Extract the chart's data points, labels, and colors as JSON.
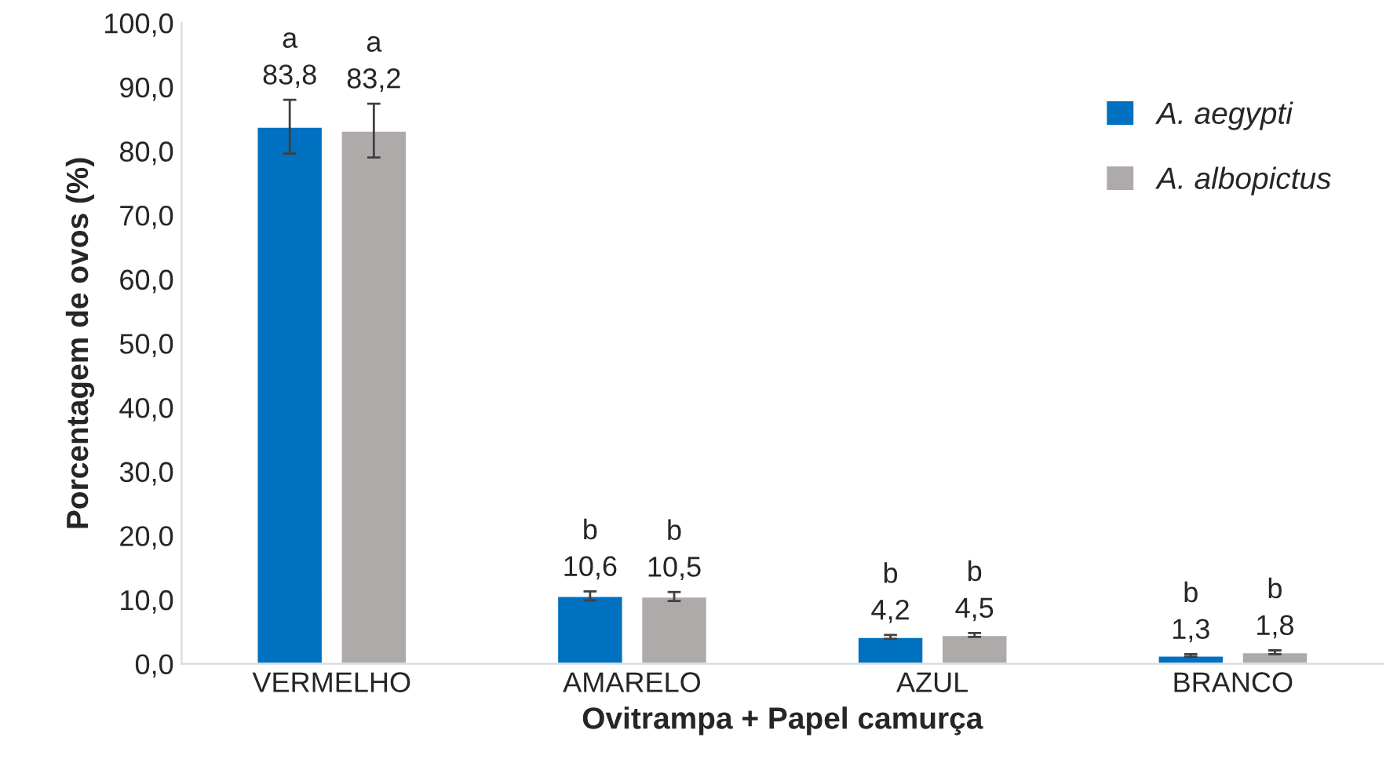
{
  "chart_data": {
    "type": "bar",
    "xlabel": "Ovitrampa + Papel camurça",
    "ylabel": "Porcentagem de ovos (%)",
    "categories": [
      "VERMELHO",
      "AMARELO",
      "AZUL",
      "BRANCO"
    ],
    "series": [
      {
        "name": "A. aegypti",
        "color": "#0070c0",
        "values": [
          83.8,
          10.6,
          4.2,
          1.3
        ],
        "errors": [
          4.2,
          0.7,
          0.3,
          0.2
        ],
        "value_labels": [
          "a\n83,8",
          "b\n10,6",
          "b\n4,2",
          "b\n1,3"
        ]
      },
      {
        "name": "A. albopictus",
        "color": "#aeaaaa",
        "values": [
          83.2,
          10.5,
          4.5,
          1.8
        ],
        "errors": [
          4.2,
          0.7,
          0.3,
          0.3
        ],
        "value_labels": [
          "a\n83,2",
          "b\n10,5",
          "b\n4,5",
          "b\n1,8"
        ]
      }
    ],
    "ylim": [
      0,
      100
    ],
    "yticks": [
      {
        "value": 0,
        "label": "0,0"
      },
      {
        "value": 10,
        "label": "10,0"
      },
      {
        "value": 20,
        "label": "20,0"
      },
      {
        "value": 30,
        "label": "30,0"
      },
      {
        "value": 40,
        "label": "40,0"
      },
      {
        "value": 50,
        "label": "50,0"
      },
      {
        "value": 60,
        "label": "60,0"
      },
      {
        "value": 70,
        "label": "70,0"
      },
      {
        "value": 80,
        "label": "80,0"
      },
      {
        "value": 90,
        "label": "90,0"
      },
      {
        "value": 100,
        "label": "100,0"
      }
    ],
    "grid": false,
    "legend": "top right"
  }
}
